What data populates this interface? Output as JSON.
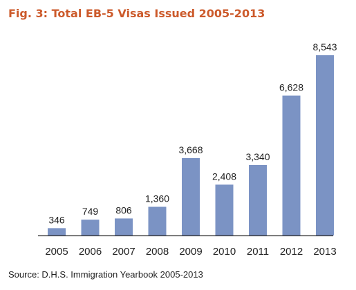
{
  "chart_data": {
    "type": "bar",
    "title": "Fig. 3: Total EB-5 Visas Issued 2005-2013",
    "categories": [
      "2005",
      "2006",
      "2007",
      "2008",
      "2009",
      "2010",
      "2011",
      "2012",
      "2013"
    ],
    "values": [
      346,
      749,
      806,
      1360,
      3668,
      2408,
      3340,
      6628,
      8543
    ],
    "value_labels": [
      "346",
      "749",
      "806",
      "1,360",
      "3,668",
      "2,408",
      "3,340",
      "6,628",
      "8,543"
    ],
    "xlabel": "",
    "ylabel": "",
    "ylim": [
      0,
      8543
    ],
    "grid": false,
    "legend": "none",
    "colors": {
      "bar": "#7b93c4",
      "title": "#cc5a2b",
      "axis": "#333333"
    }
  },
  "source": "Source: D.H.S. Immigration Yearbook 2005-2013"
}
